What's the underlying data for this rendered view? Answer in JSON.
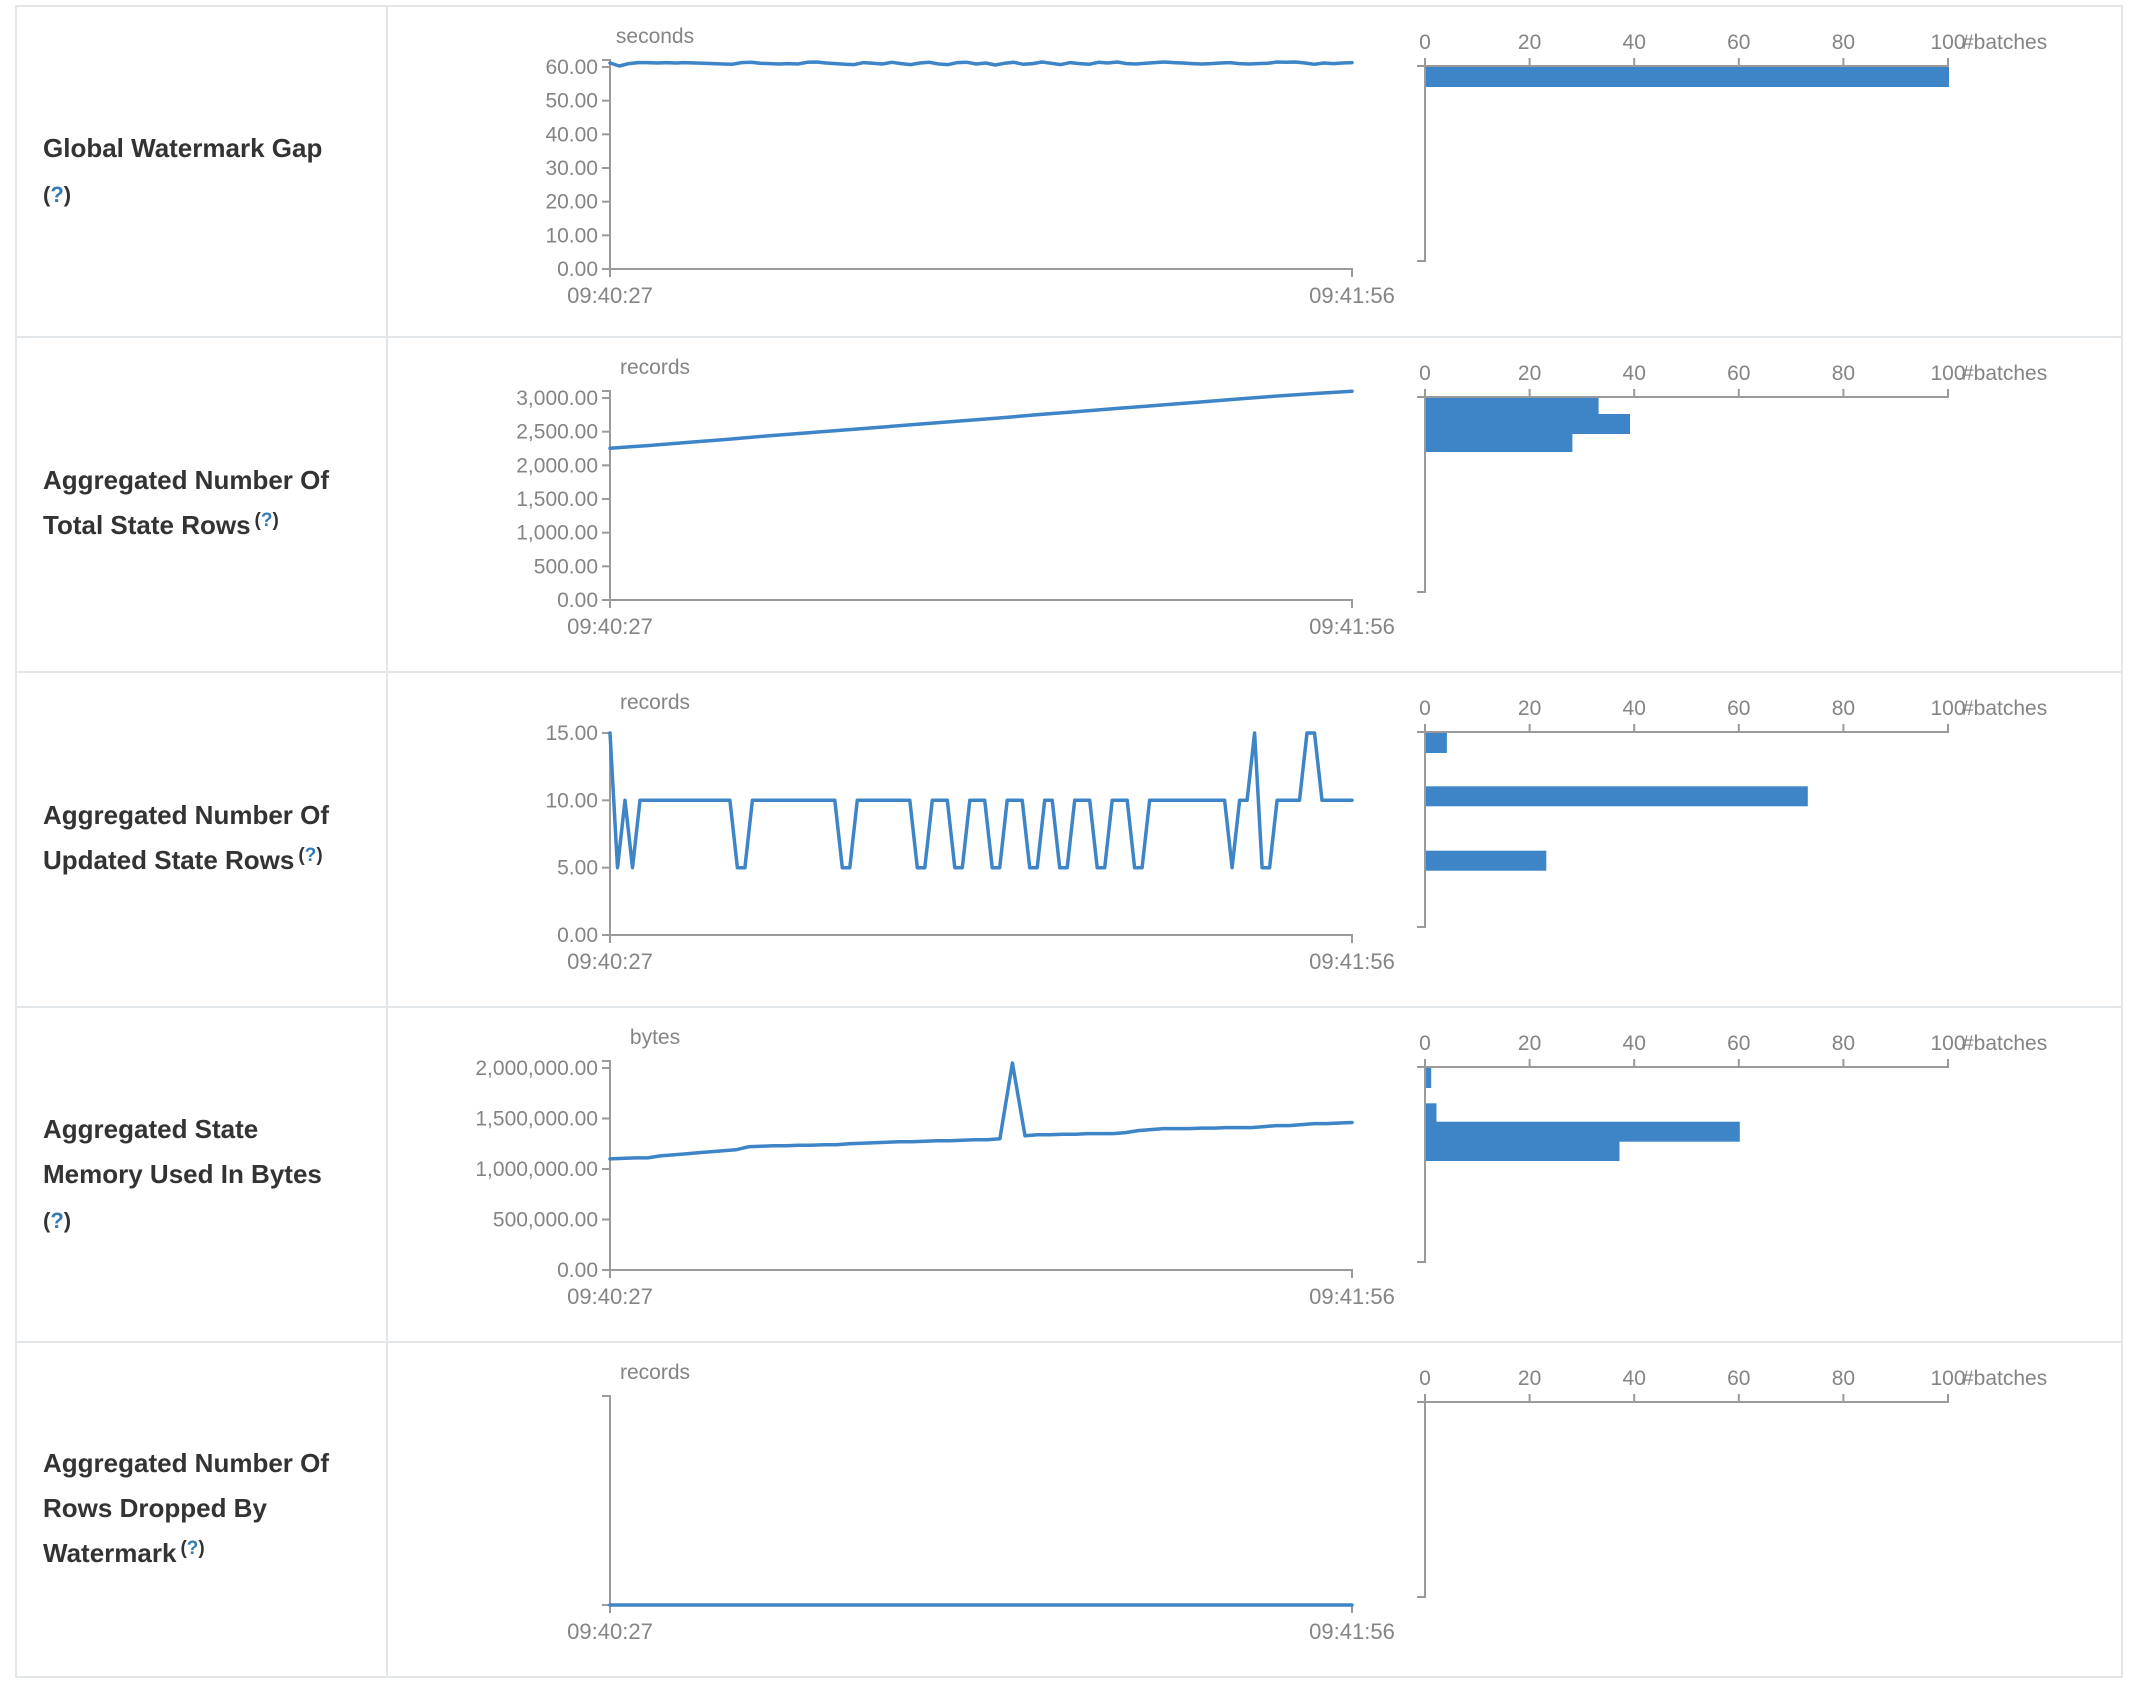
{
  "colors": {
    "series_blue": "#3d85c6",
    "axis_gray": "#9a9a9a",
    "tick_text_gray": "#848484",
    "label_text": "#333333",
    "help_link_blue": "#337ab7",
    "table_border": "#e4e7ea"
  },
  "rows": [
    {
      "label": "Global Watermark Gap",
      "lines": [
        "Global Watermark Gap"
      ],
      "help": {
        "open": "(",
        "q": "?",
        "close": ")"
      },
      "help_inline": false,
      "help_sup": false
    },
    {
      "label": "Aggregated Number Of Total State Rows",
      "lines": [
        "Aggregated Number Of",
        "Total State Rows"
      ],
      "help": {
        "open": "(",
        "q": "?",
        "close": ")"
      },
      "help_inline": true,
      "help_sup": true
    },
    {
      "label": "Aggregated Number Of Updated State Rows",
      "lines": [
        "Aggregated Number Of",
        "Updated State Rows"
      ],
      "help": {
        "open": "(",
        "q": "?",
        "close": ")"
      },
      "help_inline": true,
      "help_sup": true
    },
    {
      "label": "Aggregated State Memory Used In Bytes",
      "lines": [
        "Aggregated State",
        "Memory Used In Bytes"
      ],
      "help": {
        "open": "(",
        "q": "?",
        "close": ")"
      },
      "help_inline": false,
      "help_sup": false
    },
    {
      "label": "Aggregated Number Of Rows Dropped By Watermark",
      "lines": [
        "Aggregated Number Of",
        "Rows Dropped By",
        "Watermark"
      ],
      "help": {
        "open": "(",
        "q": "?",
        "close": ")"
      },
      "help_inline": true,
      "help_sup": true
    }
  ],
  "chart_data": [
    {
      "type": "line",
      "title": "Global Watermark Gap",
      "unit": "seconds",
      "x_start_label": "09:40:27",
      "x_end_label": "09:41:56",
      "y_scale_max": 60,
      "domain_overhang": true,
      "y_ticks": [
        {
          "v": 60,
          "label": "60.00"
        },
        {
          "v": 50,
          "label": "50.00"
        },
        {
          "v": 40,
          "label": "40.00"
        },
        {
          "v": 30,
          "label": "30.00"
        },
        {
          "v": 20,
          "label": "20.00"
        },
        {
          "v": 10,
          "label": "10.00"
        },
        {
          "v": 0,
          "label": "0.00"
        }
      ],
      "values": [
        61.2,
        60.3,
        61.0,
        61.3,
        61.3,
        61.2,
        61.3,
        61.2,
        61.3,
        61.2,
        61.1,
        61.0,
        60.9,
        60.8,
        61.3,
        61.4,
        61.1,
        61.0,
        60.9,
        61.0,
        60.9,
        61.4,
        61.5,
        61.2,
        61.0,
        60.8,
        60.7,
        61.3,
        61.1,
        60.9,
        61.4,
        61.0,
        60.7,
        61.2,
        61.4,
        60.9,
        60.7,
        61.3,
        61.4,
        60.9,
        61.2,
        60.6,
        61.1,
        61.4,
        60.8,
        61.0,
        61.5,
        61.1,
        60.7,
        61.3,
        61.0,
        60.8,
        61.4,
        61.2,
        61.5,
        61.0,
        60.9,
        61.1,
        61.3,
        61.5,
        61.3,
        61.2,
        61.0,
        60.9,
        61.0,
        61.2,
        61.3,
        61.0,
        60.9,
        61.0,
        61.1,
        61.5,
        61.4,
        61.5,
        61.2,
        60.8,
        61.2,
        61.0,
        61.2,
        61.3
      ],
      "histogram": {
        "type": "bar",
        "axis_label": "#batches",
        "x_max": 100,
        "x_ticks": [
          {
            "v": 0,
            "label": "0"
          },
          {
            "v": 20,
            "label": "20"
          },
          {
            "v": 40,
            "label": "40"
          },
          {
            "v": 60,
            "label": "60"
          },
          {
            "v": 80,
            "label": "80"
          },
          {
            "v": 100,
            "label": "100"
          }
        ],
        "bars": [
          {
            "value": 61,
            "count": 100
          }
        ]
      }
    },
    {
      "type": "line",
      "title": "Aggregated Number Of Total State Rows",
      "unit": "records",
      "x_start_label": "09:40:27",
      "x_end_label": "09:41:56",
      "y_scale_max": 3000,
      "domain_overhang": true,
      "y_ticks": [
        {
          "v": 3000,
          "label": "3,000.00"
        },
        {
          "v": 2500,
          "label": "2,500.00"
        },
        {
          "v": 2000,
          "label": "2,000.00"
        },
        {
          "v": 1500,
          "label": "1,500.00"
        },
        {
          "v": 1000,
          "label": "1,000.00"
        },
        {
          "v": 500,
          "label": "500.00"
        },
        {
          "v": 0,
          "label": "0.00"
        }
      ],
      "values": [
        2255,
        2295,
        2340,
        2385,
        2435,
        2480,
        2525,
        2570,
        2615,
        2660,
        2705,
        2755,
        2800,
        2845,
        2890,
        2935,
        2980,
        3025,
        3065,
        3100
      ],
      "histogram": {
        "type": "bar",
        "axis_label": "#batches",
        "x_max": 100,
        "x_ticks": [
          {
            "v": 0,
            "label": "0"
          },
          {
            "v": 20,
            "label": "20"
          },
          {
            "v": 40,
            "label": "40"
          },
          {
            "v": 60,
            "label": "60"
          },
          {
            "v": 80,
            "label": "80"
          },
          {
            "v": 100,
            "label": "100"
          }
        ],
        "bars": [
          {
            "value": 2870,
            "count": 33
          },
          {
            "value": 2580,
            "count": 39
          },
          {
            "value": 2300,
            "count": 28
          }
        ]
      }
    },
    {
      "type": "line",
      "title": "Aggregated Number Of Updated State Rows",
      "unit": "records",
      "x_start_label": "09:40:27",
      "x_end_label": "09:41:56",
      "y_scale_max": 15,
      "domain_overhang": false,
      "y_ticks": [
        {
          "v": 15,
          "label": "15.00"
        },
        {
          "v": 10,
          "label": "10.00"
        },
        {
          "v": 5,
          "label": "5.00"
        },
        {
          "v": 0,
          "label": "0.00"
        }
      ],
      "values": [
        15,
        5,
        10,
        5,
        10,
        10,
        10,
        10,
        10,
        10,
        10,
        10,
        10,
        10,
        10,
        10,
        10,
        5,
        5,
        10,
        10,
        10,
        10,
        10,
        10,
        10,
        10,
        10,
        10,
        10,
        10,
        5,
        5,
        10,
        10,
        10,
        10,
        10,
        10,
        10,
        10,
        5,
        5,
        10,
        10,
        10,
        5,
        5,
        10,
        10,
        10,
        5,
        5,
        10,
        10,
        10,
        5,
        5,
        10,
        10,
        5,
        5,
        10,
        10,
        10,
        5,
        5,
        10,
        10,
        10,
        5,
        5,
        10,
        10,
        10,
        10,
        10,
        10,
        10,
        10,
        10,
        10,
        10,
        5,
        10,
        10,
        15,
        5,
        5,
        10,
        10,
        10,
        10,
        15,
        15,
        10,
        10,
        10,
        10,
        10
      ],
      "histogram": {
        "type": "bar",
        "axis_label": "#batches",
        "x_max": 100,
        "x_ticks": [
          {
            "v": 0,
            "label": "0"
          },
          {
            "v": 20,
            "label": "20"
          },
          {
            "v": 40,
            "label": "40"
          },
          {
            "v": 60,
            "label": "60"
          },
          {
            "v": 80,
            "label": "80"
          },
          {
            "v": 100,
            "label": "100"
          }
        ],
        "bars": [
          {
            "value": 15,
            "count": 4
          },
          {
            "value": 10,
            "count": 73
          },
          {
            "value": 5,
            "count": 23
          }
        ]
      }
    },
    {
      "type": "line",
      "title": "Aggregated State Memory Used In Bytes",
      "unit": "bytes",
      "x_start_label": "09:40:27",
      "x_end_label": "09:41:56",
      "y_scale_max": 2000000,
      "domain_overhang": true,
      "y_ticks": [
        {
          "v": 2000000,
          "label": "2,000,000.00"
        },
        {
          "v": 1500000,
          "label": "1,500,000.00"
        },
        {
          "v": 1000000,
          "label": "1,000,000.00"
        },
        {
          "v": 500000,
          "label": "500,000.00"
        },
        {
          "v": 0,
          "label": "0.00"
        }
      ],
      "values": [
        1100000,
        1105000,
        1110000,
        1110000,
        1130000,
        1140000,
        1150000,
        1160000,
        1170000,
        1180000,
        1190000,
        1220000,
        1225000,
        1230000,
        1230000,
        1235000,
        1235000,
        1240000,
        1240000,
        1250000,
        1255000,
        1260000,
        1265000,
        1270000,
        1270000,
        1275000,
        1280000,
        1280000,
        1285000,
        1290000,
        1290000,
        1300000,
        2050000,
        1330000,
        1340000,
        1340000,
        1345000,
        1345000,
        1350000,
        1350000,
        1350000,
        1360000,
        1380000,
        1390000,
        1400000,
        1400000,
        1400000,
        1405000,
        1405000,
        1410000,
        1410000,
        1410000,
        1420000,
        1430000,
        1430000,
        1440000,
        1450000,
        1450000,
        1455000,
        1460000
      ],
      "histogram": {
        "type": "bar",
        "axis_label": "#batches",
        "x_max": 100,
        "x_ticks": [
          {
            "v": 0,
            "label": "0"
          },
          {
            "v": 20,
            "label": "20"
          },
          {
            "v": 40,
            "label": "40"
          },
          {
            "v": 60,
            "label": "60"
          },
          {
            "v": 80,
            "label": "80"
          },
          {
            "v": 100,
            "label": "100"
          }
        ],
        "bars": [
          {
            "value": 2050000,
            "count": 1
          },
          {
            "value": 1520000,
            "count": 2
          },
          {
            "value": 1330000,
            "count": 60
          },
          {
            "value": 1130000,
            "count": 37
          }
        ]
      }
    },
    {
      "type": "line",
      "title": "Aggregated Number Of Rows Dropped By Watermark",
      "unit": "records",
      "x_start_label": "09:40:27",
      "x_end_label": "09:41:56",
      "y_scale_max": 1,
      "domain_overhang": true,
      "y_ticks": [],
      "values": [
        0,
        0
      ],
      "histogram": {
        "type": "bar",
        "axis_label": "#batches",
        "x_max": 100,
        "x_ticks": [
          {
            "v": 0,
            "label": "0"
          },
          {
            "v": 20,
            "label": "20"
          },
          {
            "v": 40,
            "label": "40"
          },
          {
            "v": 60,
            "label": "60"
          },
          {
            "v": 80,
            "label": "80"
          },
          {
            "v": 100,
            "label": "100"
          }
        ],
        "bars": []
      }
    }
  ]
}
